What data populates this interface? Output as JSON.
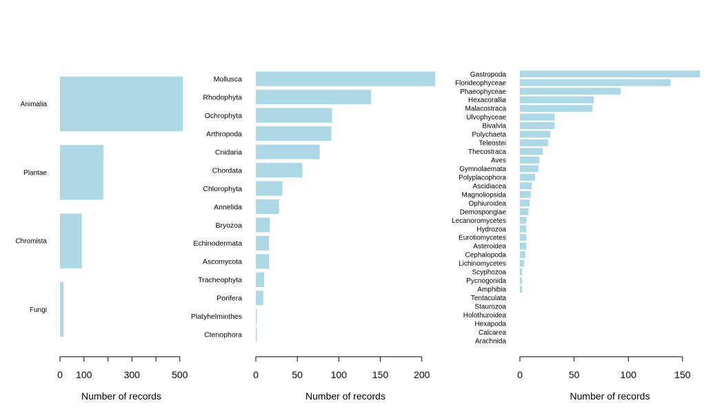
{
  "bar_color": "#add8e6",
  "axis_color": "#000000",
  "chart_data": [
    {
      "type": "bar",
      "orientation": "horizontal",
      "panel": "kingdom",
      "categories": [
        "Animalia",
        "Plantae",
        "Chromista",
        "Fungi"
      ],
      "values": [
        512,
        181,
        91,
        15
      ],
      "xlim": [
        0,
        512
      ],
      "xticks": [
        0,
        100,
        300,
        500
      ],
      "minor_xticks": [
        200,
        400
      ],
      "xlabel": "Number of records",
      "ylabel": "",
      "title": "",
      "grid": false
    },
    {
      "type": "bar",
      "orientation": "horizontal",
      "panel": "phylum",
      "categories": [
        "Mollusca",
        "Rhodophyta",
        "Ochrophyta",
        "Arthropoda",
        "Cnidaria",
        "Chordata",
        "Chlorophyta",
        "Annelida",
        "Bryozoa",
        "Echinodermata",
        "Ascomycota",
        "Tracheophyta",
        "Porifera",
        "Platyhelminthes",
        "Ctenophora"
      ],
      "values": [
        216,
        139,
        92,
        91,
        77,
        56,
        32,
        28,
        17,
        16,
        16,
        10,
        9,
        1,
        1
      ],
      "xlim": [
        0,
        216
      ],
      "xticks": [
        0,
        50,
        100,
        150,
        200
      ],
      "xlabel": "Number of records",
      "ylabel": "",
      "title": "",
      "grid": false
    },
    {
      "type": "bar",
      "orientation": "horizontal",
      "panel": "class",
      "categories": [
        "Gastropoda",
        "Florideophyceae",
        "Phaeophyceae",
        "Hexacorallia",
        "Malacostraca",
        "Ulvophyceae",
        "Bivalvia",
        "Polychaeta",
        "Teleostei",
        "Thecostraca",
        "Aves",
        "Gymnolaemata",
        "Polyplacophora",
        "Ascidiacea",
        "Magnoliopsida",
        "Ophiuroidea",
        "Demospongiae",
        "Lecanoromycetes",
        "Hydrozoa",
        "Eurotiomycetes",
        "Asteroidea",
        "Cephalopoda",
        "Lichinomycetes",
        "Scyphozoa",
        "Pycnogonida",
        "Amphibia",
        "Tentaculata",
        "Staurozoa",
        "Holothuroidea",
        "Hexapoda",
        "Calcarea",
        "Arachnida"
      ],
      "values": [
        166,
        139,
        93,
        68,
        67,
        32,
        32,
        28,
        26,
        21,
        18,
        17,
        14,
        11,
        10,
        9,
        8,
        6,
        6,
        6,
        6,
        5,
        4,
        2,
        2,
        2,
        0,
        0,
        0,
        0,
        0,
        0
      ],
      "xlim": [
        0,
        166
      ],
      "xticks": [
        0,
        50,
        100,
        150
      ],
      "xlabel": "Number of records",
      "ylabel": "",
      "title": "",
      "grid": false
    }
  ]
}
